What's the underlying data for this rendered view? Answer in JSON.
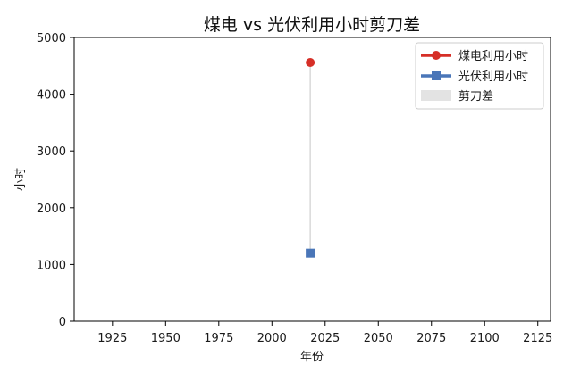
{
  "chart_data": {
    "type": "scatter",
    "title": "煤电 vs 光伏利用小时剪刀差",
    "xlabel": "年份",
    "ylabel": "小时",
    "xlim": [
      1907,
      2131
    ],
    "ylim": [
      0,
      5000
    ],
    "xticks": [
      1925,
      1950,
      1975,
      2000,
      2025,
      2050,
      2075,
      2100,
      2125
    ],
    "yticks": [
      0,
      1000,
      2000,
      3000,
      4000,
      5000
    ],
    "grid": false,
    "legend_position": "top-right",
    "series": [
      {
        "name": "煤电利用小时",
        "color": "#d62f27",
        "marker": "circle",
        "points": [
          {
            "x": 2018,
            "y": 4560
          }
        ]
      },
      {
        "name": "光伏利用小时",
        "color": "#4a76b8",
        "marker": "square",
        "points": [
          {
            "x": 2018,
            "y": 1200
          }
        ]
      }
    ],
    "gap_band": {
      "name": "剪刀差",
      "color": "#e3e3e3",
      "x": 2018,
      "y_low": 1200,
      "y_high": 4560
    }
  }
}
